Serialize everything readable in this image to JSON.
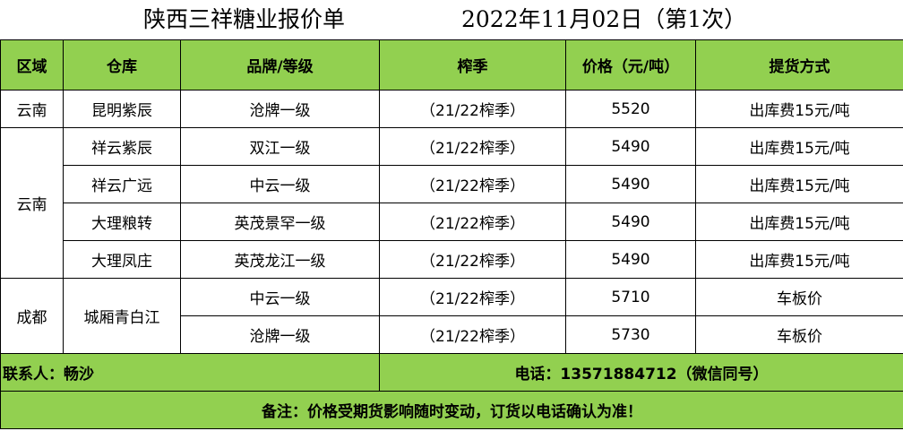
{
  "title": {
    "company": "陕西三祥糖业报价单",
    "date": "2022年11月02日（第1次）"
  },
  "headers": [
    "区域",
    "仓库",
    "品牌/等级",
    "榨季",
    "价格（元/吨）",
    "提货方式"
  ],
  "rows": [
    {
      "region": "云南",
      "warehouse": "昆明紫辰",
      "brand": "沧牌一级",
      "season": "（21/22榨季）",
      "price": "5520",
      "delivery": "出库费15元/吨"
    },
    {
      "region": "云南",
      "warehouse": "祥云紫辰",
      "brand": "双江一级",
      "season": "（21/22榨季）",
      "price": "5490",
      "delivery": "出库费15元/吨"
    },
    {
      "warehouse": "祥云广远",
      "brand": "中云一级",
      "season": "（21/22榨季）",
      "price": "5490",
      "delivery": "出库费15元/吨"
    },
    {
      "warehouse": "大理粮转",
      "brand": "英茂景罕一级",
      "season": "（21/22榨季）",
      "price": "5490",
      "delivery": "出库费15元/吨"
    },
    {
      "warehouse": "大理凤庄",
      "brand": "英茂龙江一级",
      "season": "（21/22榨季）",
      "price": "5490",
      "delivery": "出库费15元/吨"
    },
    {
      "region": "成都",
      "warehouse": "城厢青白江",
      "brand": "中云一级",
      "season": "（21/22榨季）",
      "price": "5710",
      "delivery": "车板价"
    },
    {
      "brand": "沧牌一级",
      "season": "（21/22榨季）",
      "price": "5730",
      "delivery": "车板价"
    }
  ],
  "contact": "联系人：畅沙",
  "phone": "电话：13571884712（微信同号）",
  "note": "备注：价格受期货影响随时变动，订货以电话确认为准！",
  "colors": {
    "header_bg": "#92d050"
  }
}
